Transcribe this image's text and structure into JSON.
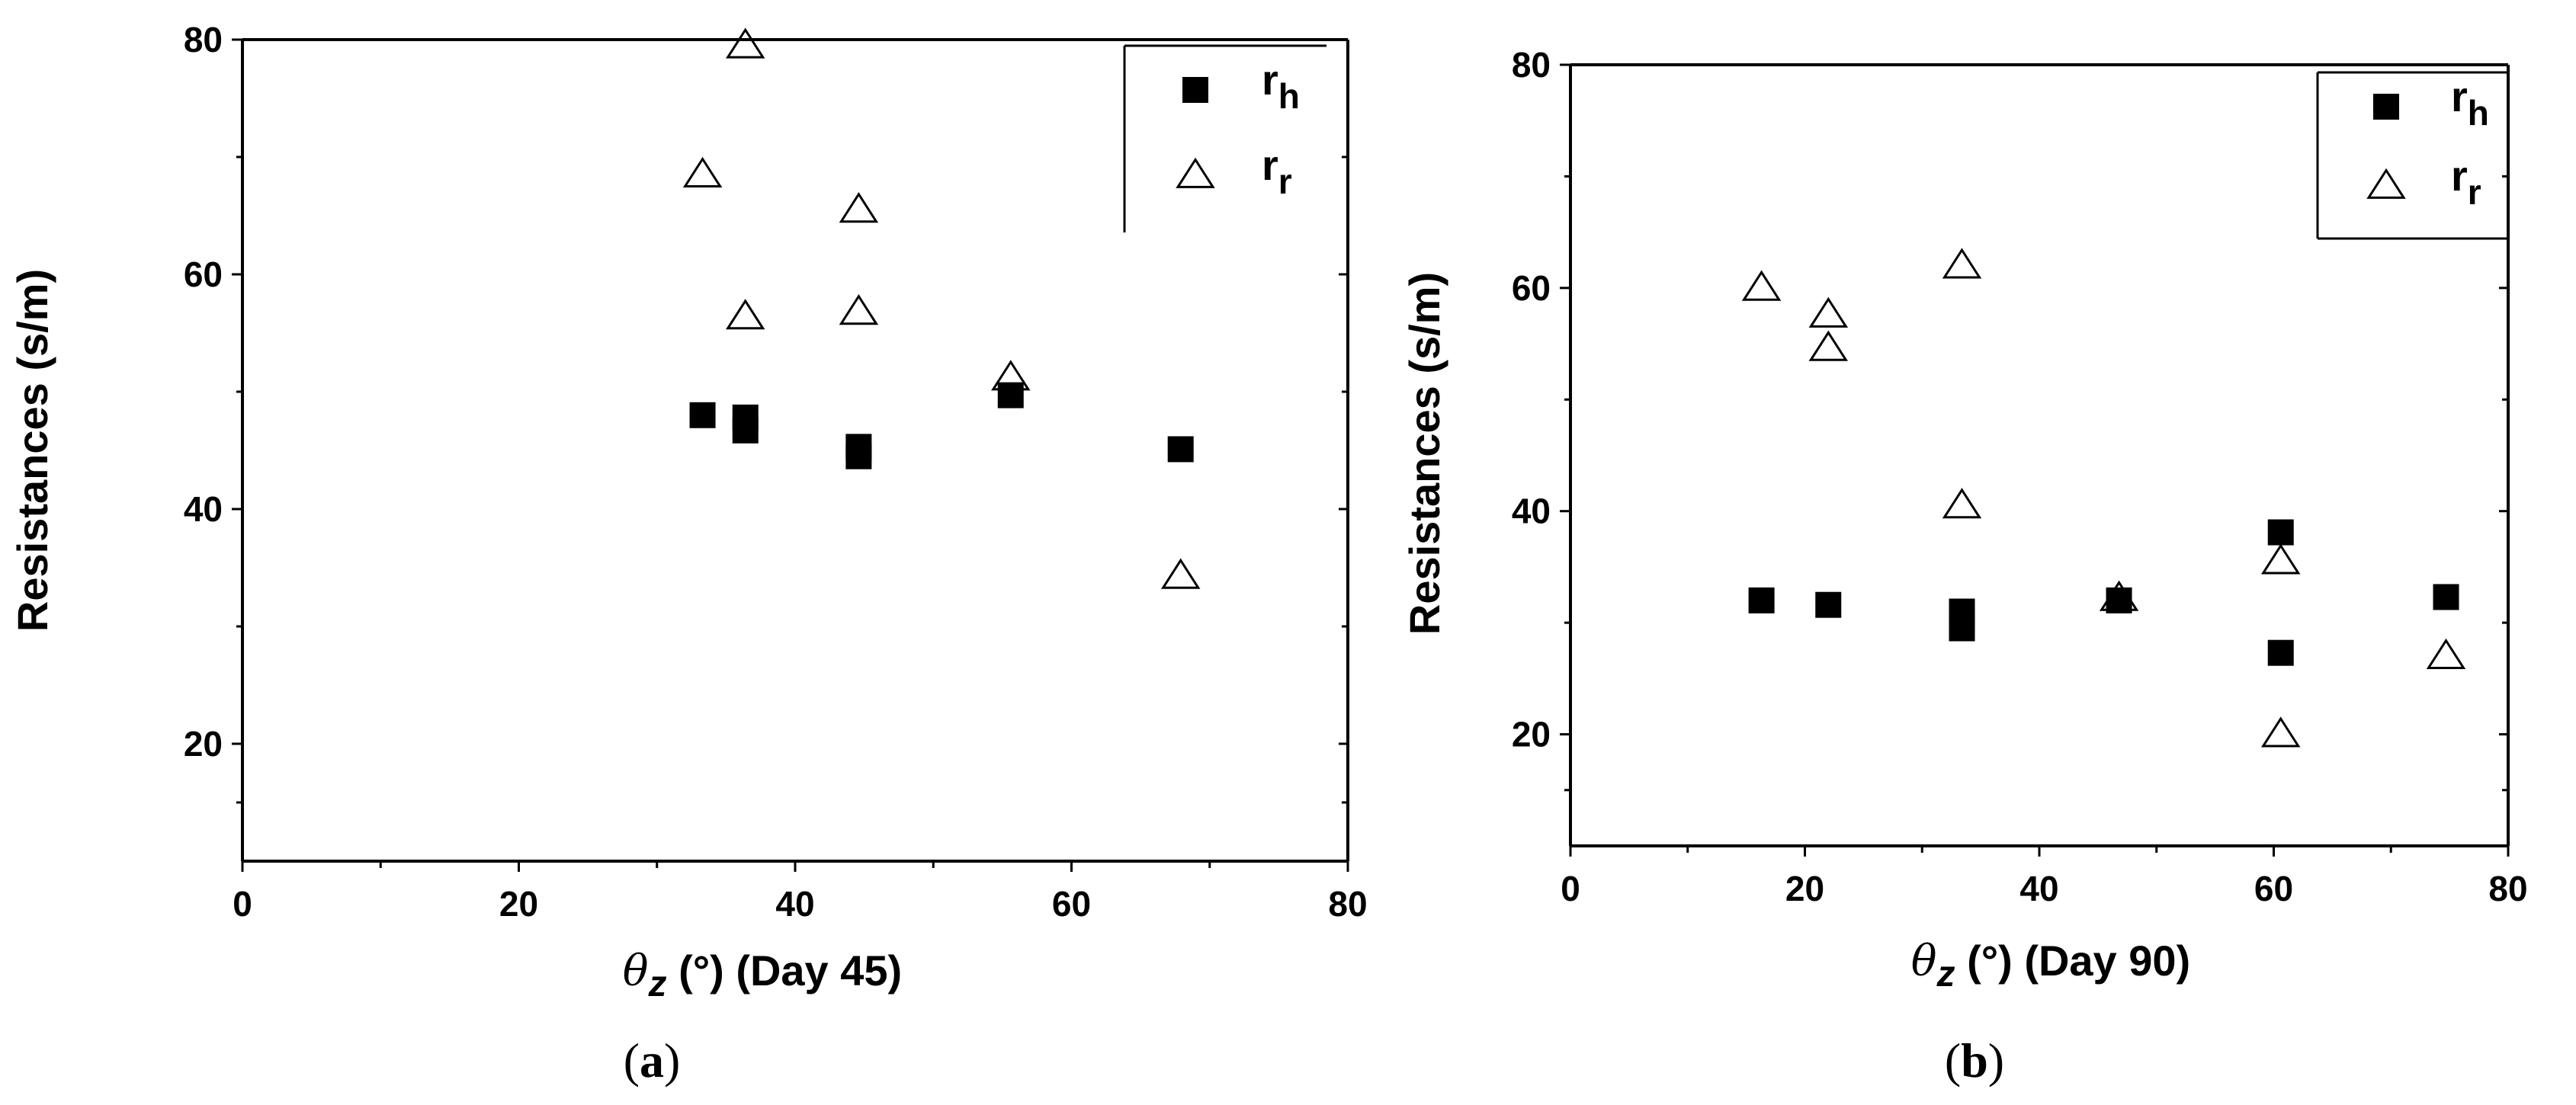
{
  "chart_data": [
    {
      "type": "scatter",
      "panel": "(a)",
      "caption_open": "(",
      "caption_letter": "a",
      "caption_close": ")",
      "xlabel_symbol": "θ",
      "xlabel_sub": "z",
      "xlabel_unit": " (°) (Day 45)",
      "ylabel": "Resistances (s/m)",
      "xlim": [
        0,
        80
      ],
      "ylim": [
        10,
        80
      ],
      "xticks": [
        0,
        20,
        40,
        60,
        80
      ],
      "xtick_labels": [
        "0",
        "20",
        "40",
        "60",
        "80"
      ],
      "yticks": [
        20,
        40,
        60,
        80
      ],
      "ytick_labels": [
        "20",
        "40",
        "60",
        "80"
      ],
      "legend_position": "top-right",
      "series": [
        {
          "name": "r_h",
          "label_main": "r",
          "label_sub": "h",
          "marker": "filled-square",
          "x": [
            33.3,
            36.4,
            36.4,
            44.6,
            44.6,
            55.6,
            67.9
          ],
          "y": [
            48.0,
            46.7,
            47.8,
            45.3,
            44.5,
            49.7,
            45.1
          ]
        },
        {
          "name": "r_r",
          "label_main": "r",
          "label_sub": "r",
          "marker": "open-triangle",
          "x": [
            36.4,
            33.3,
            44.6,
            36.4,
            44.6,
            55.6,
            67.9
          ],
          "y": [
            79.5,
            68.5,
            65.5,
            56.4,
            56.8,
            51.2,
            34.3
          ]
        }
      ]
    },
    {
      "type": "scatter",
      "panel": "(b)",
      "caption_open": "(",
      "caption_letter": "b",
      "caption_close": ")",
      "xlabel_symbol": "θ",
      "xlabel_sub": "z",
      "xlabel_unit": " (°) (Day 90)",
      "ylabel": "Resistances (s/m)",
      "xlim": [
        0,
        80
      ],
      "ylim": [
        10,
        80
      ],
      "xticks": [
        0,
        20,
        40,
        60,
        80
      ],
      "xtick_labels": [
        "0",
        "20",
        "40",
        "60",
        "80"
      ],
      "yticks": [
        20,
        40,
        60,
        80
      ],
      "ytick_labels": [
        "20",
        "40",
        "60",
        "80"
      ],
      "legend_position": "top-right",
      "series": [
        {
          "name": "r_h",
          "label_main": "r",
          "label_sub": "h",
          "marker": "filled-square",
          "x": [
            16.3,
            22.0,
            33.4,
            33.4,
            46.8,
            60.6,
            60.6,
            74.7
          ],
          "y": [
            32.0,
            31.6,
            31.0,
            29.5,
            32.0,
            38.1,
            27.3,
            32.3
          ]
        },
        {
          "name": "r_r",
          "label_main": "r",
          "label_sub": "r",
          "marker": "open-triangle",
          "x": [
            16.3,
            22.0,
            22.0,
            33.4,
            33.4,
            46.8,
            60.6,
            60.6,
            74.7
          ],
          "y": [
            60.0,
            57.6,
            54.6,
            62.0,
            40.5,
            32.2,
            35.5,
            20.0,
            27.0
          ]
        }
      ]
    }
  ]
}
